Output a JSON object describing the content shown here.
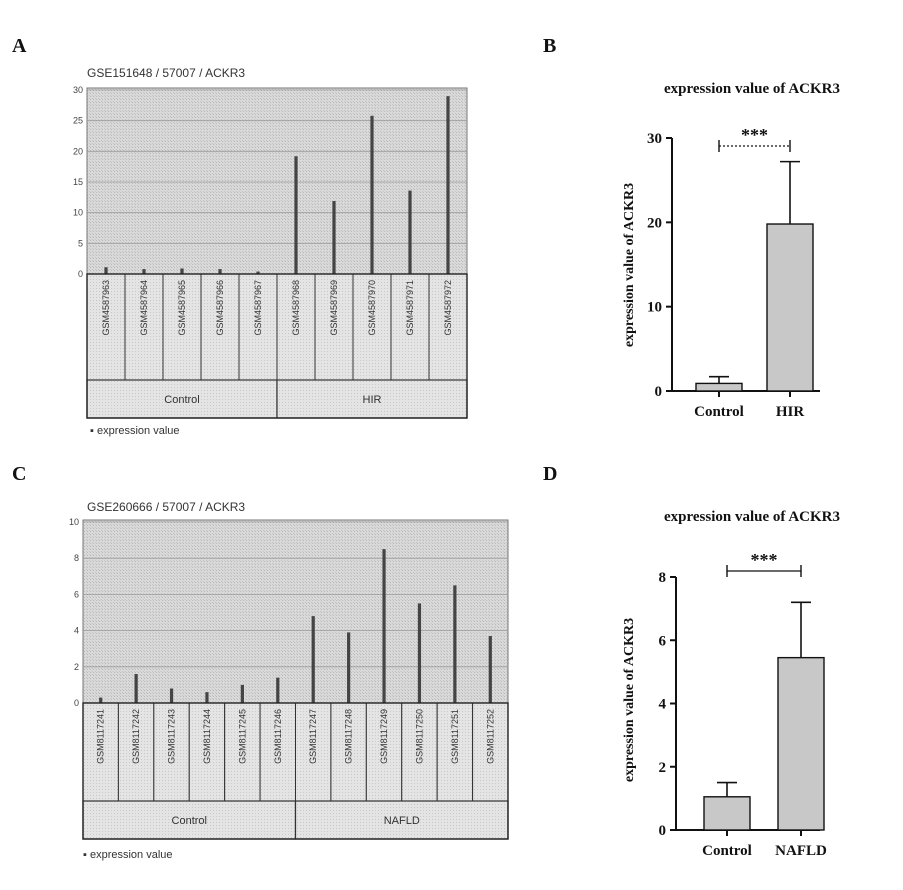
{
  "colors": {
    "geo_background": "#d6d6d6",
    "geo_bar": "#444444",
    "prism_bar": "#c8c8c8",
    "axis": "#111111"
  },
  "chart_data": [
    {
      "panel": "A",
      "type": "bar",
      "title": "GSE151648 / 57007 / ACKR3",
      "ylim": [
        0,
        30
      ],
      "yticks": [
        0,
        5,
        10,
        15,
        20,
        25,
        30
      ],
      "grid": true,
      "categories": [
        "GSM4587963",
        "GSM4587964",
        "GSM4587965",
        "GSM4587966",
        "GSM4587967",
        "GSM4587968",
        "GSM4587969",
        "GSM4587970",
        "GSM4587971",
        "GSM4587972"
      ],
      "values": [
        1.1,
        0.8,
        0.9,
        0.8,
        0.4,
        19.2,
        11.9,
        25.8,
        13.6,
        29.0
      ],
      "groups": [
        {
          "name": "Control",
          "count": 5
        },
        {
          "name": "HIR",
          "count": 5
        }
      ],
      "legend": "expression value"
    },
    {
      "panel": "B",
      "type": "bar",
      "title": "expression value of ACKR3",
      "ylabel": "expression value of ACKR3",
      "ylim": [
        0,
        30
      ],
      "yticks": [
        0,
        10,
        20,
        30
      ],
      "categories": [
        "Control",
        "HIR"
      ],
      "values": [
        0.9,
        19.8
      ],
      "errors": [
        0.8,
        7.4
      ],
      "significance": "***"
    },
    {
      "panel": "C",
      "type": "bar",
      "title": "GSE260666 / 57007 / ACKR3",
      "ylim": [
        0,
        10
      ],
      "yticks": [
        0,
        2,
        4,
        6,
        8,
        10
      ],
      "grid": true,
      "categories": [
        "GSM8117241",
        "GSM8117242",
        "GSM8117243",
        "GSM8117244",
        "GSM8117245",
        "GSM8117246",
        "GSM8117247",
        "GSM8117248",
        "GSM8117249",
        "GSM8117250",
        "GSM8117251",
        "GSM8117252"
      ],
      "values": [
        0.3,
        1.6,
        0.8,
        0.6,
        1.0,
        1.4,
        4.8,
        3.9,
        8.5,
        5.5,
        6.5,
        3.7
      ],
      "groups": [
        {
          "name": "Control",
          "count": 6
        },
        {
          "name": "NAFLD",
          "count": 6
        }
      ],
      "legend": "expression value"
    },
    {
      "panel": "D",
      "type": "bar",
      "title": "expression value of ACKR3",
      "ylabel": "expression value of ACKR3",
      "ylim": [
        0,
        8
      ],
      "yticks": [
        0,
        2,
        4,
        6,
        8
      ],
      "categories": [
        "Control",
        "NAFLD"
      ],
      "values": [
        1.05,
        5.45
      ],
      "errors": [
        0.45,
        1.75
      ],
      "significance": "***"
    }
  ]
}
